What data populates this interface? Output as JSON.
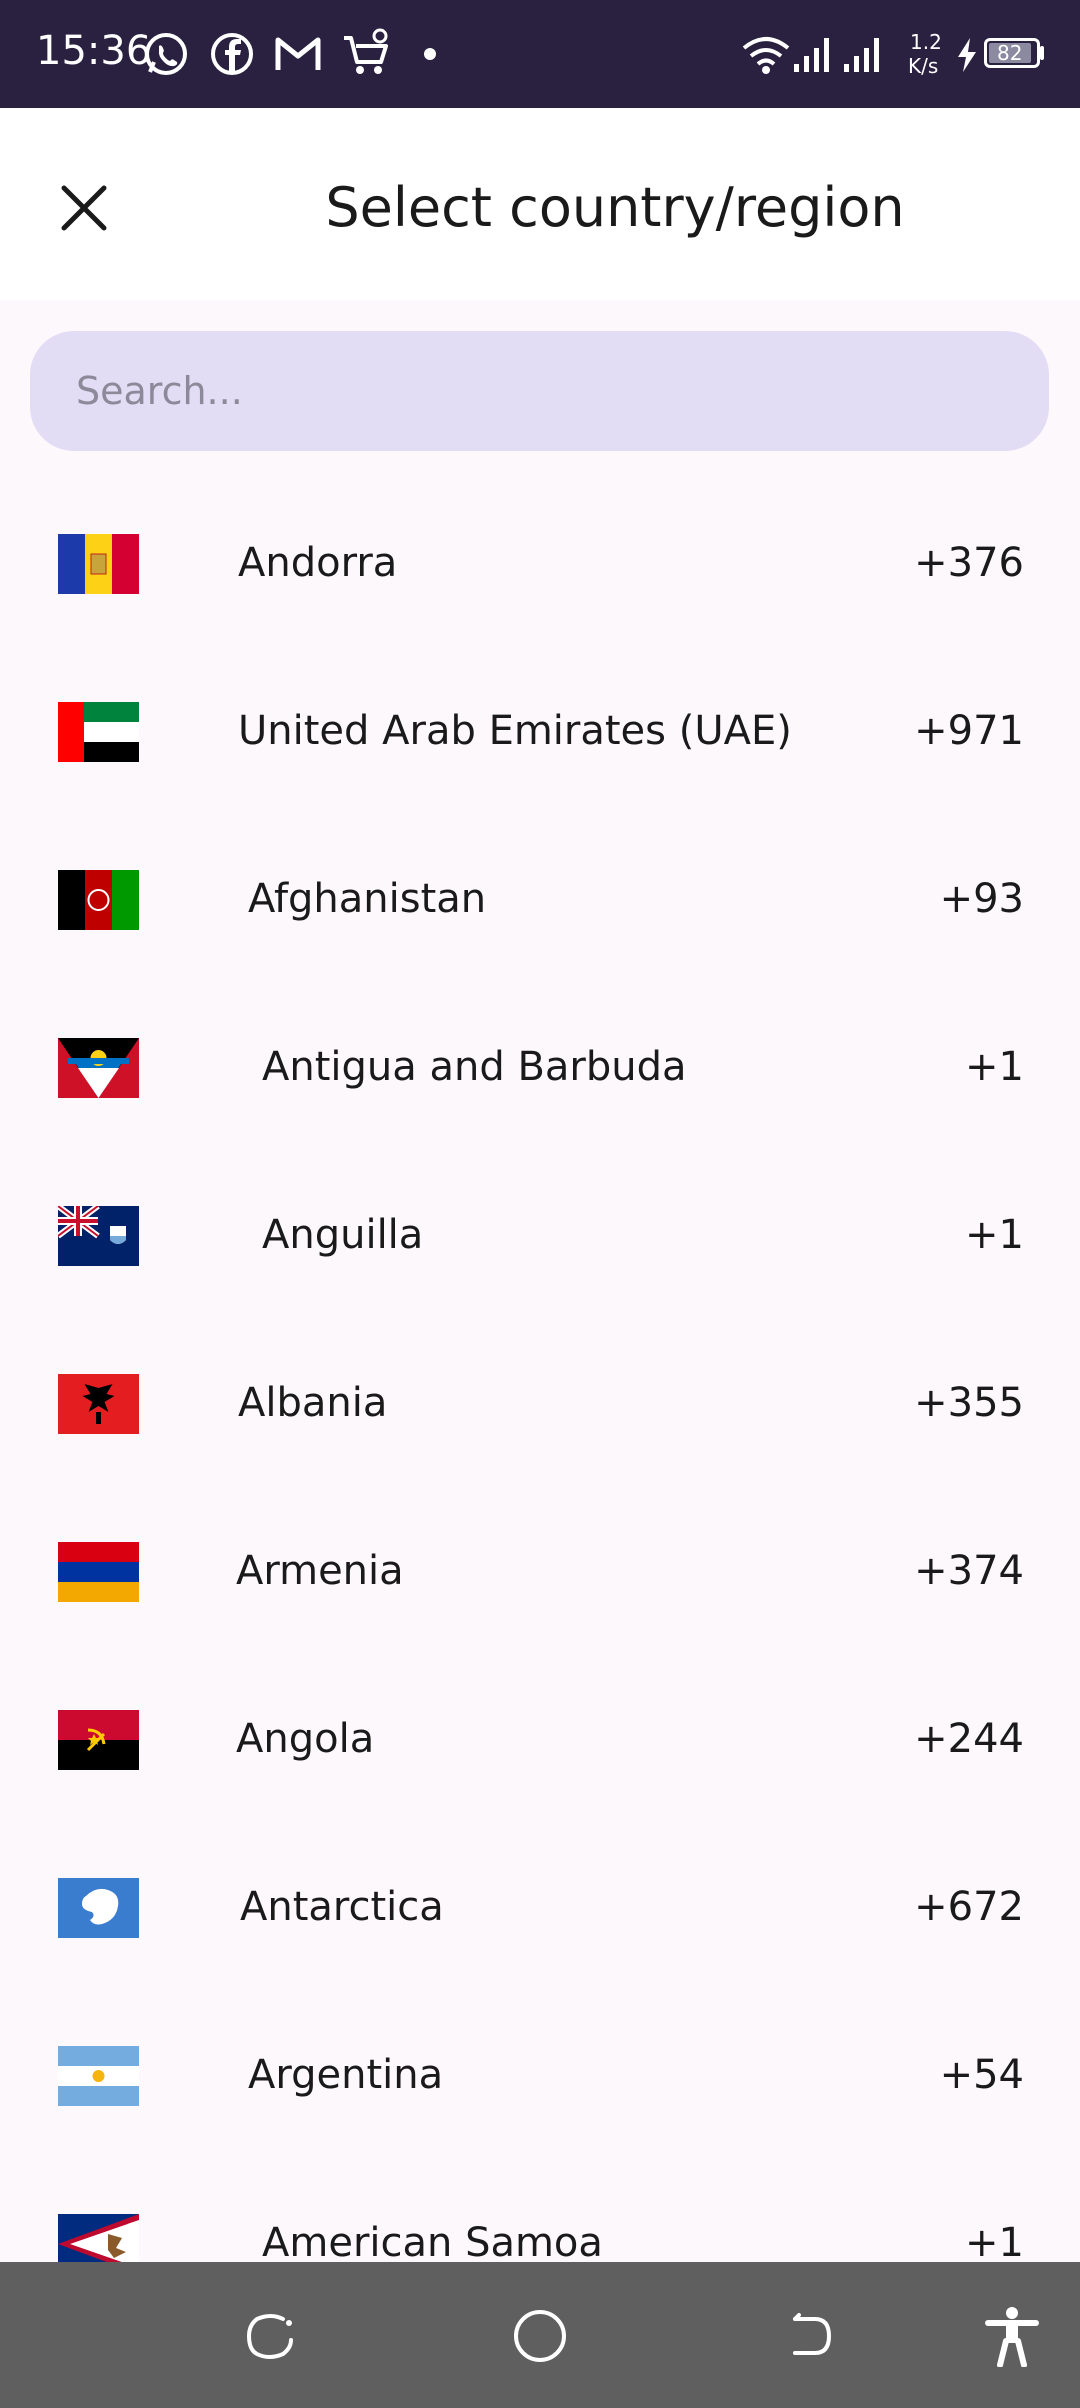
{
  "status_bar": {
    "time": "15:36",
    "net_speed_value": "1.2",
    "net_speed_unit": "K/s",
    "battery": "82",
    "icons": [
      "whatsapp-icon",
      "facebook-icon",
      "gmail-icon",
      "shopping-cart-icon",
      "dot-icon",
      "wifi-icon",
      "signal-icon",
      "charging-icon",
      "battery-icon"
    ]
  },
  "header": {
    "title": "Select country/region",
    "close_icon": "close-icon"
  },
  "search": {
    "placeholder": "Search...",
    "value": ""
  },
  "countries": [
    {
      "name": "Andorra",
      "code": "+376",
      "flag": "andorra-flag"
    },
    {
      "name": "United Arab Emirates (UAE)",
      "code": "+971",
      "flag": "uae-flag"
    },
    {
      "name": "Afghanistan",
      "code": "+93",
      "flag": "afghanistan-flag"
    },
    {
      "name": "Antigua and Barbuda",
      "code": "+1",
      "flag": "antigua-flag"
    },
    {
      "name": "Anguilla",
      "code": "+1",
      "flag": "anguilla-flag"
    },
    {
      "name": "Albania",
      "code": "+355",
      "flag": "albania-flag"
    },
    {
      "name": "Armenia",
      "code": "+374",
      "flag": "armenia-flag"
    },
    {
      "name": "Angola",
      "code": "+244",
      "flag": "angola-flag"
    },
    {
      "name": "Antarctica",
      "code": "+672",
      "flag": "antarctica-flag"
    },
    {
      "name": "Argentina",
      "code": "+54",
      "flag": "argentina-flag"
    },
    {
      "name": "American Samoa",
      "code": "+1",
      "flag": "american-samoa-flag"
    }
  ],
  "nav_bar": {
    "icons": [
      "recents-icon",
      "home-icon",
      "back-icon",
      "accessibility-icon"
    ]
  },
  "colors": {
    "status_bar_bg": "#2a2140",
    "search_bg": "#e3dcf5",
    "nav_bar_bg": "#5f5f5f"
  }
}
